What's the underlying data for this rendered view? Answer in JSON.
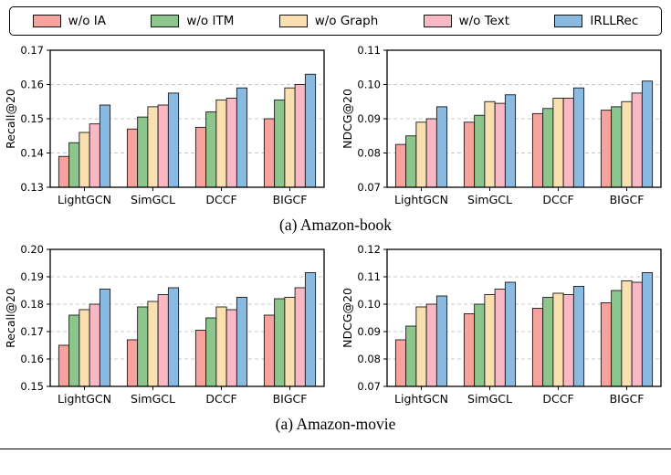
{
  "legend": {
    "position": "top",
    "items": [
      {
        "label": "w/o IA",
        "color": "#F7A29D",
        "edge": "#111111"
      },
      {
        "label": "w/o ITM",
        "color": "#8CC68C",
        "edge": "#111111"
      },
      {
        "label": "w/o Graph",
        "color": "#FAE0B0",
        "edge": "#111111"
      },
      {
        "label": "w/o Text",
        "color": "#FAB8C4",
        "edge": "#111111"
      },
      {
        "label": "IRLLRec",
        "color": "#89BBE2",
        "edge": "#111111"
      }
    ]
  },
  "captions": [
    "(a) Amazon-book",
    "(a) Amazon-movie"
  ],
  "style": {
    "grid_color": "#c9c9c9",
    "bar_edge": "#1a1a1a",
    "axis_color": "#000000"
  },
  "chart_data": [
    {
      "type": "bar",
      "title": "Amazon-book Recall",
      "xlabel": "",
      "ylabel": "Recall@20",
      "categories": [
        "LightGCN",
        "SimGCL",
        "DCCF",
        "BIGCF"
      ],
      "series": [
        {
          "name": "w/o IA",
          "values": [
            0.139,
            0.147,
            0.1475,
            0.15
          ]
        },
        {
          "name": "w/o ITM",
          "values": [
            0.143,
            0.1505,
            0.152,
            0.1555
          ]
        },
        {
          "name": "w/o Graph",
          "values": [
            0.146,
            0.1535,
            0.1555,
            0.159
          ]
        },
        {
          "name": "w/o Text",
          "values": [
            0.1485,
            0.154,
            0.156,
            0.16
          ]
        },
        {
          "name": "IRLLRec",
          "values": [
            0.154,
            0.1575,
            0.159,
            0.163
          ]
        }
      ],
      "ylim": [
        0.13,
        0.17
      ],
      "yticks": [
        0.13,
        0.14,
        0.15,
        0.16,
        0.17
      ],
      "grid": "dashed-horizontal",
      "legend_position": "shared-top"
    },
    {
      "type": "bar",
      "title": "Amazon-book NDCG",
      "xlabel": "",
      "ylabel": "NDCG@20",
      "categories": [
        "LightGCN",
        "SimGCL",
        "DCCF",
        "BIGCF"
      ],
      "series": [
        {
          "name": "w/o IA",
          "values": [
            0.0825,
            0.089,
            0.0915,
            0.0925
          ]
        },
        {
          "name": "w/o ITM",
          "values": [
            0.085,
            0.091,
            0.093,
            0.0935
          ]
        },
        {
          "name": "w/o Graph",
          "values": [
            0.089,
            0.095,
            0.096,
            0.095
          ]
        },
        {
          "name": "w/o Text",
          "values": [
            0.09,
            0.0945,
            0.096,
            0.0975
          ]
        },
        {
          "name": "IRLLRec",
          "values": [
            0.0935,
            0.097,
            0.099,
            0.101
          ]
        }
      ],
      "ylim": [
        0.07,
        0.11
      ],
      "yticks": [
        0.07,
        0.08,
        0.09,
        0.1,
        0.11
      ],
      "grid": "dashed-horizontal",
      "legend_position": "shared-top"
    },
    {
      "type": "bar",
      "title": "Amazon-movie Recall",
      "xlabel": "",
      "ylabel": "Recall@20",
      "categories": [
        "LightGCN",
        "SimGCL",
        "DCCF",
        "BIGCF"
      ],
      "series": [
        {
          "name": "w/o IA",
          "values": [
            0.165,
            0.167,
            0.1705,
            0.176
          ]
        },
        {
          "name": "w/o ITM",
          "values": [
            0.176,
            0.179,
            0.175,
            0.182
          ]
        },
        {
          "name": "w/o Graph",
          "values": [
            0.178,
            0.181,
            0.179,
            0.1825
          ]
        },
        {
          "name": "w/o Text",
          "values": [
            0.18,
            0.1835,
            0.178,
            0.186
          ]
        },
        {
          "name": "IRLLRec",
          "values": [
            0.1855,
            0.186,
            0.1825,
            0.1915
          ]
        }
      ],
      "ylim": [
        0.15,
        0.2
      ],
      "yticks": [
        0.15,
        0.16,
        0.17,
        0.18,
        0.19,
        0.2
      ],
      "grid": "dashed-horizontal",
      "legend_position": "shared-top"
    },
    {
      "type": "bar",
      "title": "Amazon-movie NDCG",
      "xlabel": "",
      "ylabel": "NDCG@20",
      "categories": [
        "LightGCN",
        "SimGCL",
        "DCCF",
        "BIGCF"
      ],
      "series": [
        {
          "name": "w/o IA",
          "values": [
            0.087,
            0.0965,
            0.0985,
            0.1005
          ]
        },
        {
          "name": "w/o ITM",
          "values": [
            0.092,
            0.1,
            0.1025,
            0.105
          ]
        },
        {
          "name": "w/o Graph",
          "values": [
            0.099,
            0.1035,
            0.104,
            0.1085
          ]
        },
        {
          "name": "w/o Text",
          "values": [
            0.1,
            0.1055,
            0.1035,
            0.108
          ]
        },
        {
          "name": "IRLLRec",
          "values": [
            0.103,
            0.108,
            0.1065,
            0.1115
          ]
        }
      ],
      "ylim": [
        0.07,
        0.12
      ],
      "yticks": [
        0.07,
        0.08,
        0.09,
        0.1,
        0.11,
        0.12
      ],
      "grid": "dashed-horizontal",
      "legend_position": "shared-top"
    }
  ]
}
